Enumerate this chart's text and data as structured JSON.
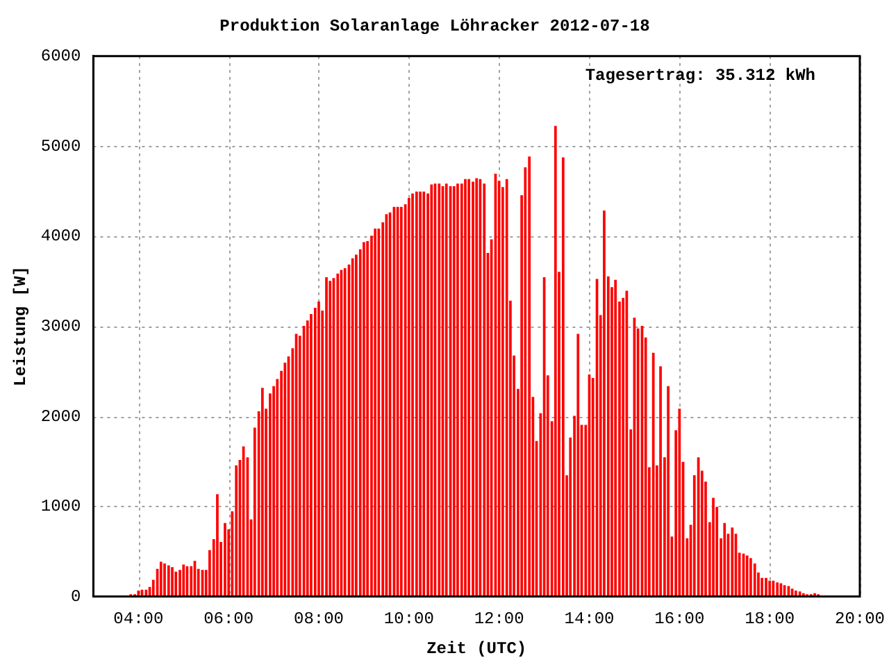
{
  "chart_data": {
    "type": "bar",
    "title": "Produktion Solaranlage Löhracker 2012-07-18",
    "xlabel": "Zeit (UTC)",
    "ylabel": "Leistung [W]",
    "annotations": [
      "Tagesertrag: 35.312 kWh"
    ],
    "x": [
      3.83,
      3.92,
      4.0,
      4.08,
      4.17,
      4.25,
      4.33,
      4.42,
      4.5,
      4.58,
      4.67,
      4.75,
      4.83,
      4.92,
      5.0,
      5.08,
      5.17,
      5.25,
      5.33,
      5.42,
      5.5,
      5.58,
      5.67,
      5.75,
      5.83,
      5.92,
      6.0,
      6.08,
      6.17,
      6.25,
      6.33,
      6.42,
      6.5,
      6.58,
      6.67,
      6.75,
      6.83,
      6.92,
      7.0,
      7.08,
      7.17,
      7.25,
      7.33,
      7.42,
      7.5,
      7.58,
      7.67,
      7.75,
      7.83,
      7.92,
      8.0,
      8.08,
      8.17,
      8.25,
      8.33,
      8.42,
      8.5,
      8.58,
      8.67,
      8.75,
      8.83,
      8.92,
      9.0,
      9.08,
      9.17,
      9.25,
      9.33,
      9.42,
      9.5,
      9.58,
      9.67,
      9.75,
      9.83,
      9.92,
      10.0,
      10.08,
      10.17,
      10.25,
      10.33,
      10.42,
      10.5,
      10.58,
      10.67,
      10.75,
      10.83,
      10.92,
      11.0,
      11.08,
      11.17,
      11.25,
      11.33,
      11.42,
      11.5,
      11.58,
      11.67,
      11.75,
      11.83,
      11.92,
      12.0,
      12.08,
      12.17,
      12.25,
      12.33,
      12.42,
      12.5,
      12.58,
      12.67,
      12.75,
      12.83,
      12.92,
      13.0,
      13.08,
      13.17,
      13.25,
      13.33,
      13.42,
      13.5,
      13.58,
      13.67,
      13.75,
      13.83,
      13.92,
      14.0,
      14.08,
      14.17,
      14.25,
      14.33,
      14.42,
      14.5,
      14.58,
      14.67,
      14.75,
      14.83,
      14.92,
      15.0,
      15.08,
      15.17,
      15.25,
      15.33,
      15.42,
      15.5,
      15.58,
      15.67,
      15.75,
      15.83,
      15.92,
      16.0,
      16.08,
      16.17,
      16.25,
      16.33,
      16.42,
      16.5,
      16.58,
      16.67,
      16.75,
      16.83,
      16.92,
      17.0,
      17.08,
      17.17,
      17.25,
      17.33,
      17.42,
      17.5,
      17.58,
      17.67,
      17.75,
      17.83,
      17.92,
      18.0,
      18.08,
      18.17,
      18.25,
      18.33,
      18.42,
      18.5,
      18.58,
      18.67,
      18.75,
      18.83,
      18.92,
      19.0,
      19.08
    ],
    "series": [
      {
        "color": "#ff0000",
        "values": [
          20,
          20,
          60,
          70,
          70,
          100,
          180,
          300,
          380,
          360,
          340,
          320,
          270,
          290,
          350,
          330,
          330,
          390,
          300,
          290,
          290,
          510,
          630,
          1130,
          600,
          810,
          740,
          940,
          1450,
          1510,
          1660,
          1540,
          850,
          1870,
          2050,
          2310,
          2080,
          2250,
          2330,
          2410,
          2500,
          2590,
          2660,
          2750,
          2910,
          2890,
          3000,
          3060,
          3130,
          3200,
          3270,
          3170,
          3540,
          3500,
          3530,
          3580,
          3620,
          3640,
          3680,
          3750,
          3790,
          3850,
          3930,
          3940,
          4000,
          4080,
          4080,
          4150,
          4240,
          4260,
          4320,
          4320,
          4320,
          4350,
          4420,
          4470,
          4490,
          4490,
          4490,
          4470,
          4570,
          4580,
          4580,
          4550,
          4580,
          4550,
          4550,
          4580,
          4580,
          4630,
          4630,
          4600,
          4640,
          4630,
          4580,
          3810,
          3960,
          4690,
          4610,
          4540,
          4630,
          3280,
          2670,
          2300,
          4450,
          4760,
          4880,
          2210,
          1720,
          2030,
          3540,
          2450,
          1940,
          5220,
          3600,
          4870,
          1340,
          1760,
          2000,
          2910,
          1900,
          1900,
          2460,
          2420,
          3520,
          3120,
          4280,
          3550,
          3430,
          3510,
          3270,
          3310,
          3390,
          1850,
          3090,
          2970,
          3000,
          2870,
          1430,
          2700,
          1450,
          2550,
          1540,
          2330,
          660,
          1840,
          2080,
          1490,
          640,
          790,
          1340,
          1540,
          1390,
          1270,
          820,
          1090,
          990,
          640,
          810,
          690,
          760,
          690,
          480,
          470,
          450,
          420,
          360,
          260,
          200,
          200,
          170,
          170,
          150,
          140,
          120,
          110,
          80,
          60,
          50,
          30,
          20,
          20,
          30,
          20
        ]
      }
    ],
    "xlim": [
      3,
      20
    ],
    "xticks": [
      {
        "value": 4,
        "label": "04:00"
      },
      {
        "value": 6,
        "label": "06:00"
      },
      {
        "value": 8,
        "label": "08:00"
      },
      {
        "value": 10,
        "label": "10:00"
      },
      {
        "value": 12,
        "label": "12:00"
      },
      {
        "value": 14,
        "label": "14:00"
      },
      {
        "value": 16,
        "label": "16:00"
      },
      {
        "value": 18,
        "label": "18:00"
      },
      {
        "value": 20,
        "label": "20:00"
      }
    ],
    "ylim": [
      0,
      6000
    ],
    "yticks": [
      0,
      1000,
      2000,
      3000,
      4000,
      5000,
      6000
    ],
    "grid": true,
    "legend": false
  }
}
